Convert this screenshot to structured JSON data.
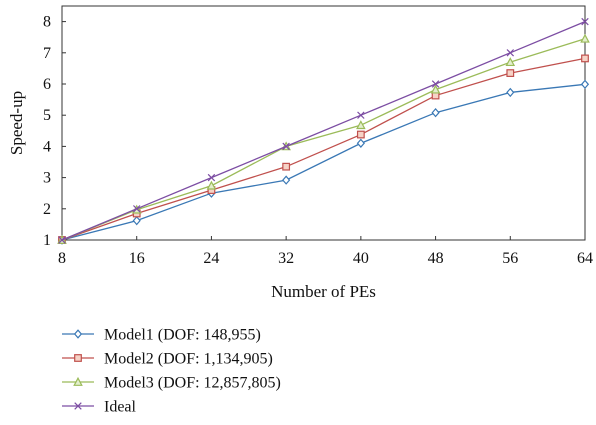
{
  "chart_data": {
    "type": "line",
    "xlabel": "Number of PEs",
    "ylabel": "Speed-up",
    "x": [
      8,
      16,
      24,
      32,
      40,
      48,
      56,
      64
    ],
    "xticks": [
      "8",
      "16",
      "24",
      "32",
      "40",
      "48",
      "56",
      "64"
    ],
    "yticks": [
      "1",
      "2",
      "3",
      "4",
      "5",
      "6",
      "7",
      "8"
    ],
    "xlim": [
      8,
      64
    ],
    "ylim": [
      1,
      8.5
    ],
    "grid": false,
    "legend_position": "bottom-left",
    "series": [
      {
        "name": "Model1 (DOF: 148,955)",
        "marker": "diamond",
        "color": "#3a78b5",
        "values": [
          1,
          1.62,
          2.5,
          2.92,
          4.1,
          5.08,
          5.73,
          5.99
        ]
      },
      {
        "name": "Model2 (DOF: 1,134,905)",
        "marker": "square",
        "color": "#c0504d",
        "values": [
          1,
          1.85,
          2.6,
          3.35,
          4.38,
          5.63,
          6.35,
          6.82
        ]
      },
      {
        "name": "Model3 (DOF: 12,857,805)",
        "marker": "triangle",
        "color": "#9bbb59",
        "values": [
          1,
          1.97,
          2.74,
          4.0,
          4.68,
          5.82,
          6.7,
          7.45
        ]
      },
      {
        "name": "Ideal",
        "marker": "x",
        "color": "#7c4da3",
        "values": [
          1,
          2,
          3,
          4,
          5,
          6,
          7,
          8
        ]
      }
    ]
  }
}
